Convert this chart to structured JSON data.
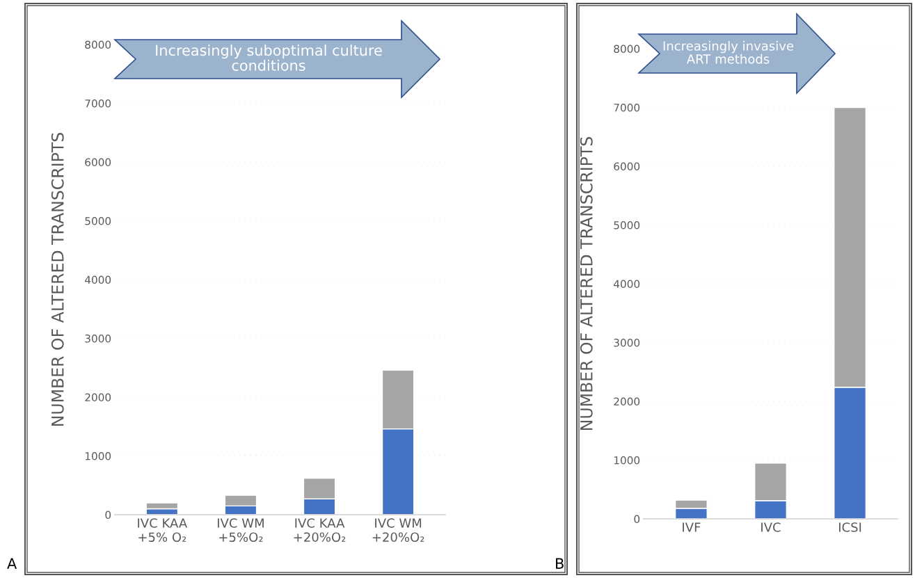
{
  "chart_data": [
    {
      "type": "bar",
      "stacked": true,
      "ylabel": "NUMBER OF ALTERED TRANSCRIPTS",
      "categories": [
        "IVC KAA\n+5% O₂",
        "IVC WM\n+5%O₂",
        "IVC KAA\n+20%O₂",
        "IVC WM\n+20%O₂"
      ],
      "series": [
        {
          "color": "#4472c4",
          "values": [
            100,
            150,
            270,
            1460
          ]
        },
        {
          "color": "#a5a5a5",
          "values": [
            100,
            180,
            350,
            1000
          ]
        }
      ],
      "ylim": [
        0,
        8000
      ],
      "yticks": [
        0,
        1000,
        2000,
        3000,
        4000,
        5000,
        6000,
        7000,
        8000
      ],
      "grid": "y",
      "annotations": [
        "Increasingly suboptimal culture\nconditions",
        "A"
      ]
    },
    {
      "type": "bar",
      "stacked": true,
      "ylabel": "NUMBER OF ALTERED TRANSCRIPTS",
      "categories": [
        "IVF",
        "IVC",
        "ICSI"
      ],
      "series": [
        {
          "color": "#4472c4",
          "values": [
            180,
            310,
            2240
          ]
        },
        {
          "color": "#a5a5a5",
          "values": [
            140,
            640,
            4760
          ]
        }
      ],
      "ylim": [
        0,
        8000
      ],
      "yticks": [
        0,
        1000,
        2000,
        3000,
        4000,
        5000,
        6000,
        7000,
        8000
      ],
      "grid": "y",
      "annotations": [
        "Increasingly invasive\nART methods",
        "B"
      ]
    }
  ]
}
